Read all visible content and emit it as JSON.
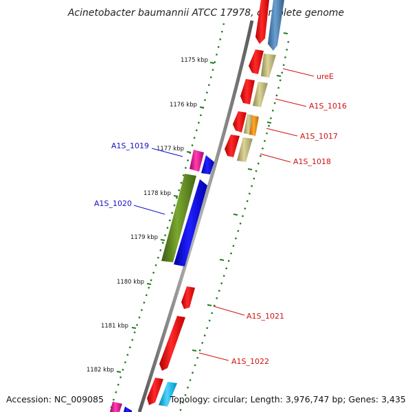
{
  "title": "Acinetobacter baumannii ATCC 17978, complete genome",
  "footer": {
    "accession": "Accession: NC_009085",
    "summary": "Topology: circular; Length: 3,976,747 bp; Genes: 3,435"
  },
  "colors": {
    "backbone": "#808080",
    "tick": "#1e7a1e",
    "label_forward": "#1010c8",
    "label_reverse": "#d01010",
    "red": "#ee1111",
    "blue": "#1414e6",
    "steelblue": "#4a7fb5",
    "khaki": "#bdb576",
    "orange": "#f09010",
    "magenta": "#ee1198",
    "olive": "#5e8a1e",
    "cyan": "#10b4ec"
  },
  "ticks": [
    {
      "label": "1175 kbp"
    },
    {
      "label": "1176 kbp"
    },
    {
      "label": "1177 kbp"
    },
    {
      "label": "1178 kbp"
    },
    {
      "label": "1179 kbp"
    },
    {
      "label": "1180 kbp"
    },
    {
      "label": "1181 kbp"
    },
    {
      "label": "1182 kbp"
    }
  ],
  "gene_labels": [
    {
      "name": "ureE",
      "strand": "reverse"
    },
    {
      "name": "A1S_1016",
      "strand": "reverse"
    },
    {
      "name": "A1S_1017",
      "strand": "reverse"
    },
    {
      "name": "A1S_1018",
      "strand": "reverse"
    },
    {
      "name": "A1S_1019",
      "strand": "forward"
    },
    {
      "name": "A1S_1020",
      "strand": "forward"
    },
    {
      "name": "A1S_1021",
      "strand": "reverse"
    },
    {
      "name": "A1S_1022",
      "strand": "reverse"
    }
  ]
}
